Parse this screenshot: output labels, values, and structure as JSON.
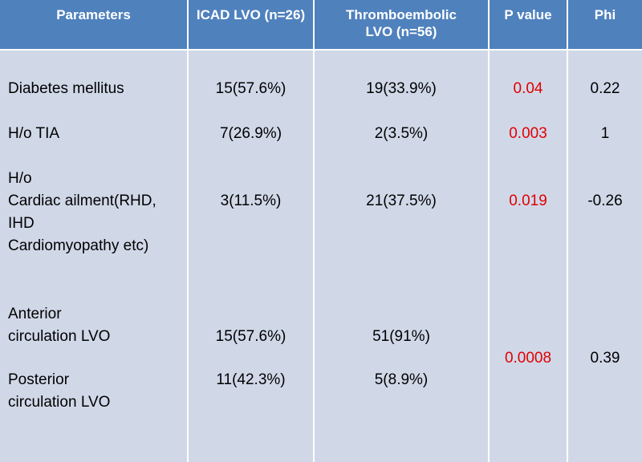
{
  "table": {
    "headers": [
      "Parameters",
      "ICAD LVO (n=26)",
      "Thromboembolic LVO (n=56)",
      "P value",
      "Phi"
    ],
    "rows": {
      "diabetes": {
        "param": "Diabetes mellitus",
        "icad": "15(57.6%)",
        "thrombo": "19(33.9%)",
        "p": "0.04",
        "phi": "0.22"
      },
      "tia": {
        "param": "H/o TIA",
        "icad": "7(26.9%)",
        "thrombo": "2(3.5%)",
        "p": "0.003",
        "phi": "1"
      },
      "cardiac": {
        "param_lines": [
          "H/o",
          "Cardiac ailment(RHD,",
          "IHD",
          "Cardiomyopathy etc)"
        ],
        "icad": "3(11.5%)",
        "thrombo": "21(37.5%)",
        "p": "0.019",
        "phi": "-0.26"
      },
      "circulation": {
        "anterior_lines": [
          "Anterior",
          "circulation LVO"
        ],
        "anterior_icad": "15(57.6%)",
        "anterior_thrombo": "51(91%)",
        "posterior_lines": [
          "Posterior",
          "circulation LVO"
        ],
        "posterior_icad": "11(42.3%)",
        "posterior_thrombo": "5(8.9%)",
        "p": "0.0008",
        "phi": "0.39"
      }
    }
  },
  "colors": {
    "header_bg": "#4f81bd",
    "body_bg": "#d0d8e8",
    "p_value_text": "#e00000"
  }
}
